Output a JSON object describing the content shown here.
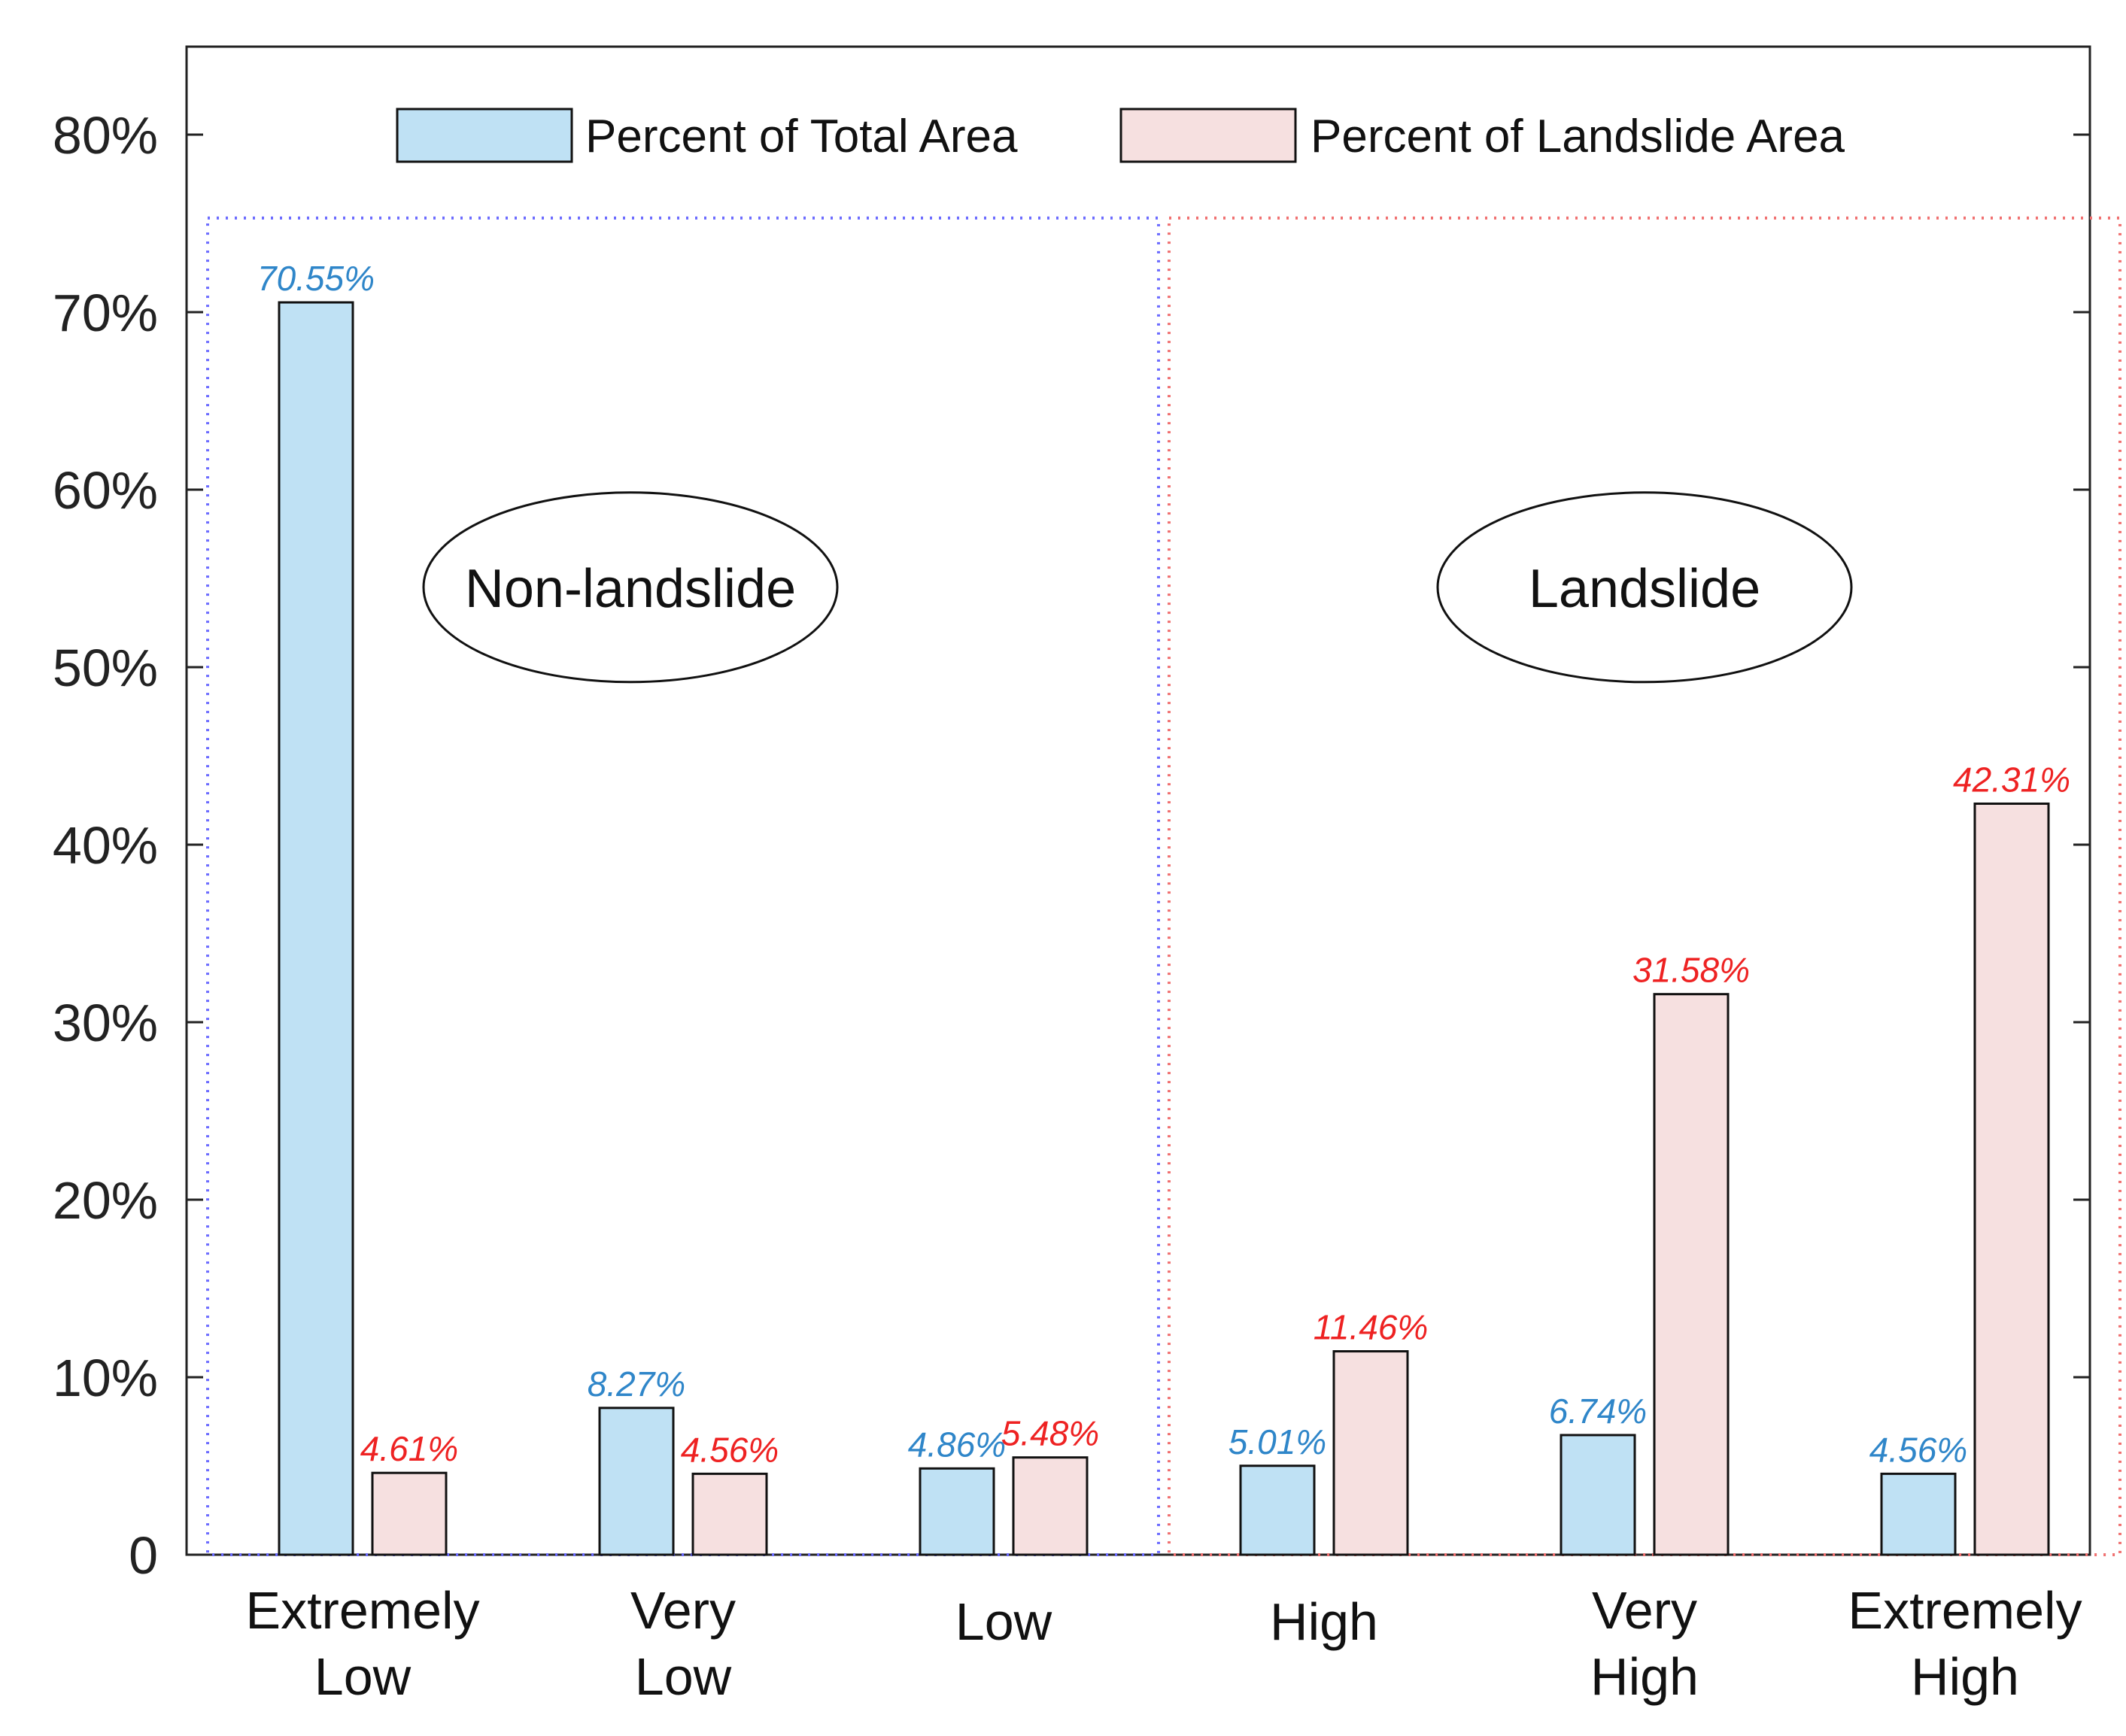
{
  "chart_data": {
    "type": "bar",
    "title": "",
    "xlabel": "",
    "ylabel": "",
    "ylim": [
      0,
      85
    ],
    "yticks": [
      0,
      10,
      20,
      30,
      40,
      50,
      60,
      70,
      80
    ],
    "ytick_labels": [
      "0",
      "10%",
      "20%",
      "30%",
      "40%",
      "50%",
      "60%",
      "70%",
      "80%"
    ],
    "categories": [
      [
        "Extremely",
        "Low"
      ],
      [
        "Very",
        "Low"
      ],
      [
        "Low"
      ],
      [
        "High"
      ],
      [
        "Very",
        "High"
      ],
      [
        "Extremely",
        "High"
      ]
    ],
    "series": [
      {
        "name": "Percent of Total Area",
        "color": "#bfe1f4",
        "label_color": "#2f86c9",
        "values": [
          70.55,
          8.27,
          4.86,
          5.01,
          6.74,
          4.56
        ],
        "labels": [
          "70.55%",
          "8.27%",
          "4.86%",
          "5.01%",
          "6.74%",
          "4.56%"
        ]
      },
      {
        "name": "Percent of Landslide Area",
        "color": "#f6e0e0",
        "label_color": "#ee2222",
        "values": [
          4.61,
          4.56,
          5.48,
          11.46,
          31.58,
          42.31
        ],
        "labels": [
          "4.61%",
          "4.56%",
          "5.48%",
          "11.46%",
          "31.58%",
          "42.31%"
        ]
      }
    ],
    "legend": {
      "position": "top"
    },
    "groups": [
      {
        "name": "Non-landslide",
        "categories": [
          0,
          1,
          2
        ],
        "border_color": "#6b6bff"
      },
      {
        "name": "Landslide",
        "categories": [
          3,
          4,
          5
        ],
        "border_color": "#f07070"
      }
    ],
    "grid": false
  }
}
